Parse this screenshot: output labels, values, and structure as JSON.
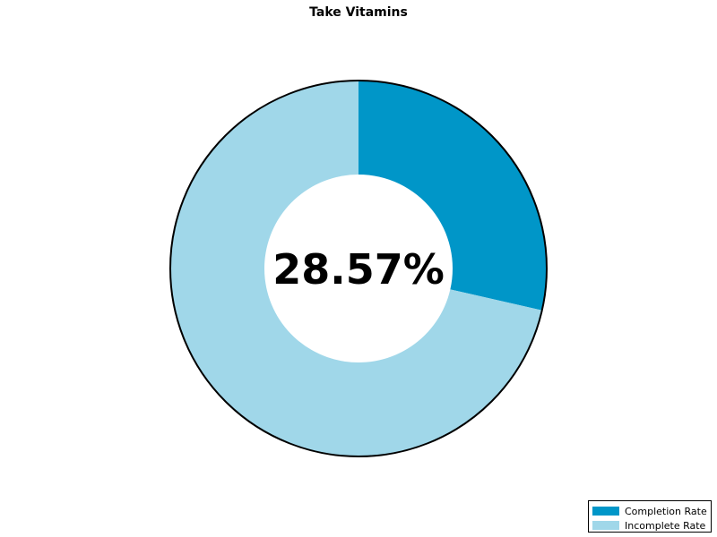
{
  "chart_data": {
    "type": "pie",
    "variant": "donut",
    "title": "Take Vitamins",
    "center_label": "28.57%",
    "slices": [
      {
        "label": "Completion Rate",
        "value": 28.57,
        "color": "#0096C8"
      },
      {
        "label": "Incomplete Rate",
        "value": 71.43,
        "color": "#A0D7E9"
      }
    ],
    "legend_position": "bottom-right"
  }
}
